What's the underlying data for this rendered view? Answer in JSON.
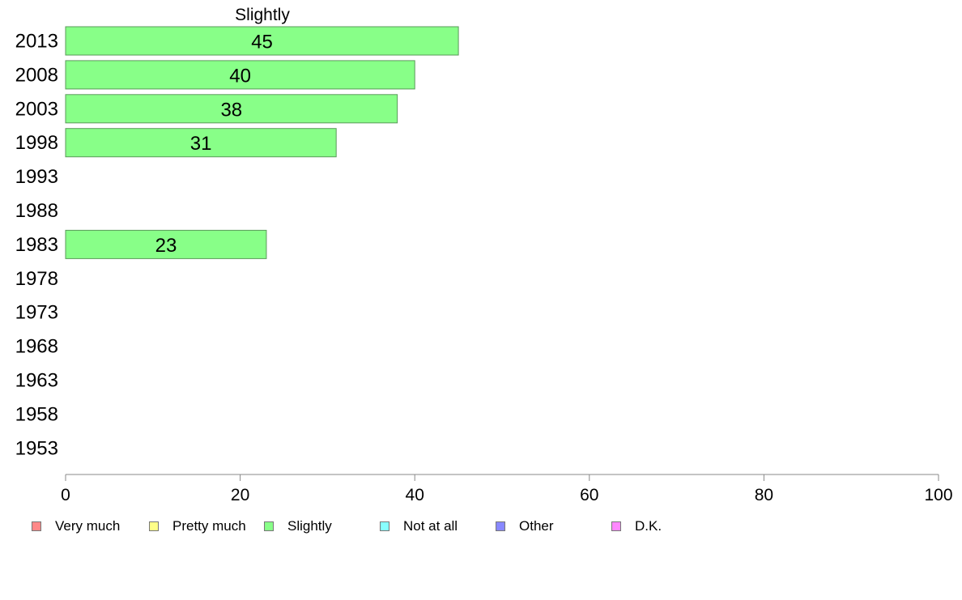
{
  "chart_data": {
    "type": "bar",
    "orientation": "horizontal",
    "title": "Slightly",
    "categories": [
      "2013",
      "2008",
      "2003",
      "1998",
      "1993",
      "1988",
      "1983",
      "1978",
      "1973",
      "1968",
      "1963",
      "1958",
      "1953"
    ],
    "series": [
      {
        "name": "Slightly",
        "color": "#88ff88",
        "values": [
          45,
          40,
          38,
          31,
          null,
          null,
          23,
          null,
          null,
          null,
          null,
          null,
          null
        ]
      }
    ],
    "value_labels": [
      "45",
      "40",
      "38",
      "31",
      "",
      "",
      "23",
      "",
      "",
      "",
      "",
      "",
      ""
    ],
    "xlim": [
      0,
      100
    ],
    "xticks": [
      0,
      20,
      40,
      60,
      80,
      100
    ],
    "grid": false,
    "legend_position": "bottom",
    "legend": [
      {
        "label": "Very much",
        "color": "#ff8888"
      },
      {
        "label": "Pretty much",
        "color": "#ffff88"
      },
      {
        "label": "Slightly",
        "color": "#88ff88"
      },
      {
        "label": "Not at all",
        "color": "#88ffff"
      },
      {
        "label": "Other",
        "color": "#8888ff"
      },
      {
        "label": "D.K.",
        "color": "#ff88ff"
      }
    ]
  }
}
